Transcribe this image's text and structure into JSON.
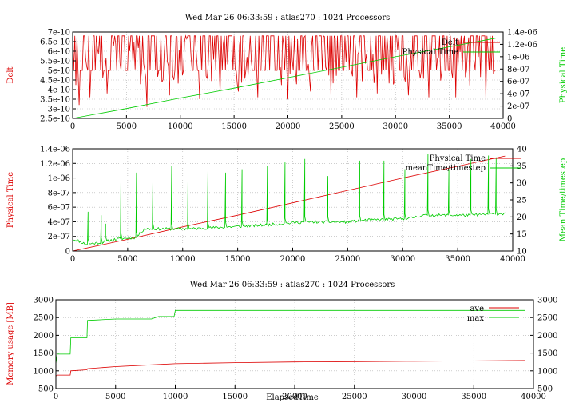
{
  "colors": {
    "red": "#dd0000",
    "green": "#00cc00",
    "text": "#000000",
    "grid": "#b0b0b0"
  },
  "chart_data": [
    {
      "type": "line",
      "title": "Wed Mar 26 06:33:59 : atlas270 : 1024 Processors",
      "xlabel": "",
      "ylabel": "Delt",
      "y2label": "Physical Time",
      "xlim": [
        0,
        40000
      ],
      "ylim": [
        2.5e-10,
        7e-10
      ],
      "y2lim": [
        0,
        1.4e-06
      ],
      "x_ticks": [
        "0",
        "5000",
        "10000",
        "15000",
        "20000",
        "25000",
        "30000",
        "35000",
        "40000"
      ],
      "y_ticks": [
        "2.5e-10",
        "3e-10",
        "3.5e-10",
        "4e-10",
        "4.5e-10",
        "5e-10",
        "5.5e-10",
        "6e-10",
        "6.5e-10",
        "7e-10"
      ],
      "y2_ticks": [
        "0",
        "2e-07",
        "4e-07",
        "6e-07",
        "8e-07",
        "1e-06",
        "1.2e-06",
        "1.4e-06"
      ],
      "grid": true,
      "legend_position": "top-right",
      "series": [
        {
          "name": "Delt",
          "axis": "y",
          "color": "#dd0000",
          "style": "noise",
          "base_values": [
            5e-10,
            6.8e-10
          ],
          "dips": [
            [
              600,
              3.2e-10
            ],
            [
              1600,
              3.6e-10
            ],
            [
              3200,
              3.8e-10
            ],
            [
              6900,
              3.1e-10
            ],
            [
              9000,
              3.7e-10
            ],
            [
              11800,
              3.5e-10
            ],
            [
              13700,
              3.8e-10
            ],
            [
              15400,
              3.9e-10
            ],
            [
              17200,
              3.6e-10
            ],
            [
              20000,
              3.5e-10
            ],
            [
              22100,
              3.9e-10
            ],
            [
              24000,
              3.7e-10
            ],
            [
              26400,
              3.6e-10
            ],
            [
              28300,
              3.8e-10
            ],
            [
              31200,
              3.7e-10
            ],
            [
              33100,
              3.6e-10
            ],
            [
              35600,
              3.6e-10
            ],
            [
              38400,
              3.5e-10
            ]
          ]
        },
        {
          "name": "Physical Time",
          "axis": "y2",
          "color": "#00cc00",
          "style": "line",
          "x": [
            0,
            5000,
            10000,
            15000,
            20000,
            25000,
            30000,
            35000,
            39300
          ],
          "values": [
            0,
            1.6e-07,
            3.3e-07,
            4.9e-07,
            6.6e-07,
            8.3e-07,
            1e-06,
            1.16e-06,
            1.3e-06
          ]
        }
      ]
    },
    {
      "type": "line",
      "title": "",
      "xlabel": "",
      "ylabel": "Physical Time",
      "y2label": "Mean Time/timestep",
      "xlim": [
        0,
        40000
      ],
      "ylim": [
        0,
        1.4e-06
      ],
      "y2lim": [
        10,
        40
      ],
      "x_ticks": [
        "0",
        "5000",
        "10000",
        "15000",
        "20000",
        "25000",
        "30000",
        "35000",
        "40000"
      ],
      "y_ticks": [
        "0",
        "2e-07",
        "4e-07",
        "6e-07",
        "8e-07",
        "1e-06",
        "1.2e-06",
        "1.4e-06"
      ],
      "y2_ticks": [
        "10",
        "15",
        "20",
        "25",
        "30",
        "35",
        "40"
      ],
      "grid": true,
      "legend_position": "top-right",
      "series": [
        {
          "name": "Physical Time",
          "axis": "y",
          "color": "#dd0000",
          "style": "line",
          "x": [
            0,
            5000,
            10000,
            15000,
            20000,
            25000,
            30000,
            35000,
            39300
          ],
          "values": [
            0,
            1.6e-07,
            3.3e-07,
            4.9e-07,
            6.6e-07,
            8.3e-07,
            1e-06,
            1.16e-06,
            1.3e-06
          ]
        },
        {
          "name": "meanTime/timestep",
          "axis": "y2",
          "color": "#00cc00",
          "style": "spiky",
          "baseline": [
            [
              0,
              13.5
            ],
            [
              500,
              13
            ],
            [
              1200,
              12
            ],
            [
              2600,
              12.5
            ],
            [
              4000,
              13.5
            ],
            [
              5800,
              14
            ],
            [
              6500,
              16.5
            ],
            [
              10000,
              16.5
            ],
            [
              10700,
              16.5
            ],
            [
              17000,
              17.5
            ],
            [
              19000,
              18
            ],
            [
              21000,
              18.5
            ],
            [
              25000,
              18.5
            ],
            [
              26500,
              19
            ],
            [
              30500,
              19.5
            ],
            [
              31800,
              20.5
            ],
            [
              36000,
              20.5
            ],
            [
              39300,
              21
            ]
          ],
          "spikes": [
            [
              1400,
              21.5
            ],
            [
              2600,
              20.5
            ],
            [
              3000,
              18
            ],
            [
              4400,
              35.5
            ],
            [
              5800,
              33
            ],
            [
              7300,
              34
            ],
            [
              9000,
              35
            ],
            [
              10500,
              35
            ],
            [
              12300,
              33.5
            ],
            [
              13900,
              33
            ],
            [
              15400,
              34
            ],
            [
              17700,
              35
            ],
            [
              19300,
              36
            ],
            [
              21100,
              37
            ],
            [
              23200,
              32
            ],
            [
              26100,
              36.5
            ],
            [
              28300,
              36.5
            ],
            [
              30200,
              34
            ],
            [
              32300,
              38.5
            ],
            [
              34200,
              34
            ],
            [
              36200,
              37
            ],
            [
              37800,
              38
            ],
            [
              38500,
              37.5
            ]
          ]
        }
      ]
    },
    {
      "type": "line",
      "title": "Wed Mar 26 06:33:59 : atlas270 : 1024 Processors",
      "xlabel": "ElapsedTime",
      "ylabel": "Memory usage [MB]",
      "y2label": "",
      "xlim": [
        0,
        40000
      ],
      "ylim": [
        500,
        3000
      ],
      "y2lim": [
        500,
        3000
      ],
      "x_ticks": [
        "0",
        "5000",
        "10000",
        "15000",
        "20000",
        "25000",
        "30000",
        "35000",
        "40000"
      ],
      "y_ticks": [
        "500",
        "1000",
        "1500",
        "2000",
        "2500",
        "3000"
      ],
      "y2_ticks": [
        "500",
        "1000",
        "1500",
        "2000",
        "2500",
        "3000"
      ],
      "grid": true,
      "legend_position": "top-right",
      "series": [
        {
          "name": "ave",
          "axis": "y",
          "color": "#dd0000",
          "style": "line",
          "x": [
            0,
            100,
            1200,
            1250,
            2600,
            2650,
            5000,
            8000,
            10000,
            15000,
            20000,
            25000,
            30000,
            35000,
            39300
          ],
          "values": [
            850,
            880,
            880,
            1000,
            1030,
            1060,
            1120,
            1170,
            1200,
            1230,
            1250,
            1260,
            1270,
            1280,
            1290
          ]
        },
        {
          "name": "max",
          "axis": "y",
          "color": "#00cc00",
          "style": "line",
          "x": [
            0,
            100,
            1200,
            1250,
            2600,
            2650,
            5000,
            8000,
            8600,
            9900,
            10000,
            15000,
            20000,
            25000,
            30000,
            35000,
            39300
          ],
          "values": [
            1200,
            1470,
            1470,
            1930,
            1930,
            2420,
            2460,
            2460,
            2530,
            2530,
            2700,
            2700,
            2700,
            2700,
            2700,
            2700,
            2700
          ]
        }
      ]
    }
  ]
}
